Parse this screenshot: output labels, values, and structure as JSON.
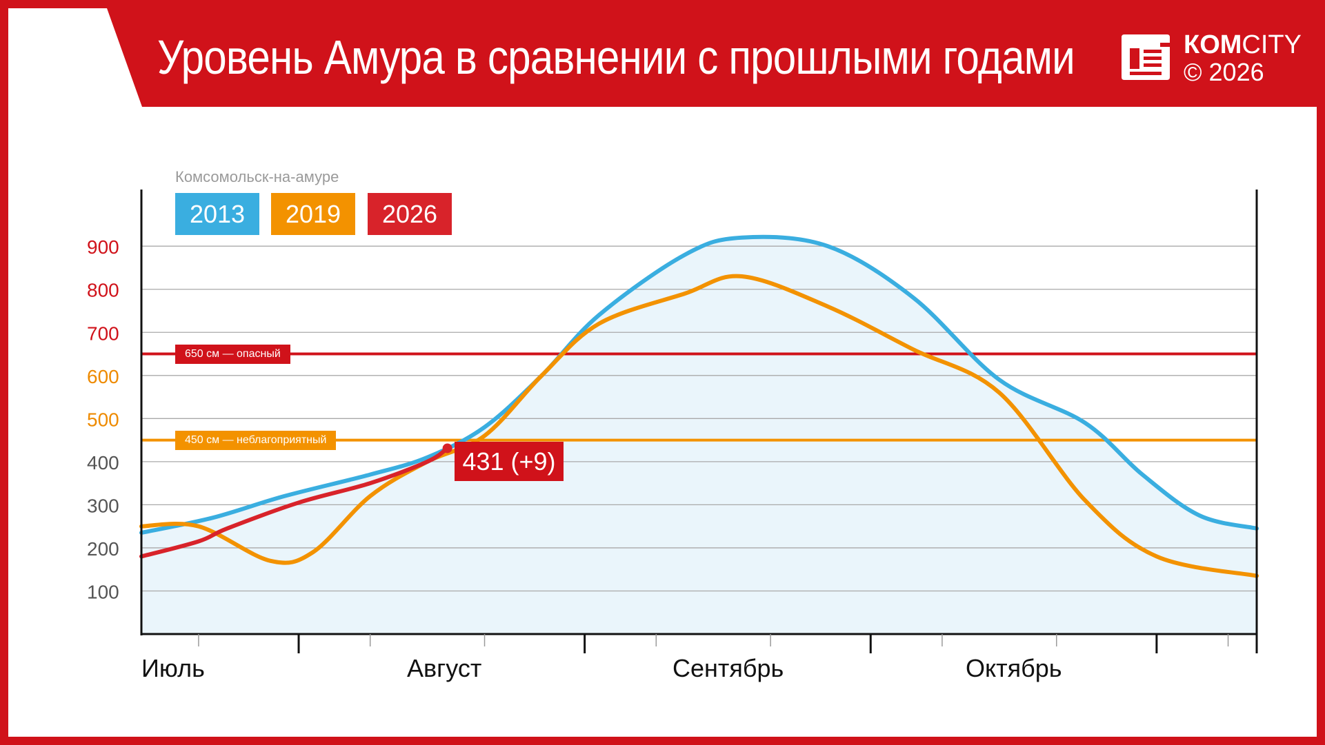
{
  "header": {
    "title": "Уровень Амура в сравнении с прошлыми годами",
    "logo_brand_bold": "КОМ",
    "logo_brand_rest": "CITY",
    "logo_copyright": "© 2026",
    "bg_color": "#d0121a"
  },
  "chart_data": {
    "type": "line",
    "subtitle": "Комсомольск-на-амуре",
    "ylim": [
      0,
      950
    ],
    "yticks": [
      {
        "v": 100,
        "label": "100",
        "color": "#555555"
      },
      {
        "v": 200,
        "label": "200",
        "color": "#555555"
      },
      {
        "v": 300,
        "label": "300",
        "color": "#555555"
      },
      {
        "v": 400,
        "label": "400",
        "color": "#555555"
      },
      {
        "v": 500,
        "label": "500",
        "color": "#ee8a00"
      },
      {
        "v": 600,
        "label": "600",
        "color": "#ee8a00"
      },
      {
        "v": 700,
        "label": "700",
        "color": "#d0121a"
      },
      {
        "v": 800,
        "label": "800",
        "color": "#d0121a"
      },
      {
        "v": 900,
        "label": "900",
        "color": "#d0121a"
      }
    ],
    "months": [
      "Июль",
      "Август",
      "Сентябрь",
      "Октябрь"
    ],
    "xlim": [
      0,
      3.9
    ],
    "minor_ticks": [
      0.2,
      0.8,
      1.2,
      1.8,
      2.2,
      2.8,
      3.2,
      3.8
    ],
    "major_ticks": [
      0.55,
      1.55,
      2.55,
      3.55
    ],
    "grid": true,
    "legend": [
      {
        "label": "2013",
        "color": "#3aaee0"
      },
      {
        "label": "2019",
        "color": "#f39200"
      },
      {
        "label": "2026",
        "color": "#d8232a"
      }
    ],
    "thresholds": [
      {
        "value": 650,
        "label": "650 см — опасный",
        "color": "#d0121a"
      },
      {
        "value": 450,
        "label": "450 см — неблагоприятный",
        "color": "#f39200"
      }
    ],
    "series": [
      {
        "name": "2013",
        "color": "#3aaee0",
        "fill": "#eaf5fb",
        "x": [
          0,
          0.25,
          0.5,
          0.8,
          1.0,
          1.2,
          1.4,
          1.6,
          1.9,
          2.1,
          2.4,
          2.7,
          3.0,
          3.3,
          3.5,
          3.7,
          3.9
        ],
        "y": [
          235,
          270,
          320,
          370,
          410,
          480,
          600,
          740,
          880,
          920,
          900,
          780,
          590,
          490,
          370,
          275,
          245
        ]
      },
      {
        "name": "2019",
        "color": "#f39200",
        "x": [
          0,
          0.2,
          0.45,
          0.6,
          0.8,
          1.0,
          1.2,
          1.4,
          1.6,
          1.9,
          2.1,
          2.4,
          2.7,
          3.0,
          3.3,
          3.55,
          3.9
        ],
        "y": [
          250,
          250,
          170,
          190,
          320,
          400,
          460,
          600,
          720,
          790,
          830,
          760,
          660,
          560,
          310,
          180,
          135
        ]
      },
      {
        "name": "2026",
        "color": "#d8232a",
        "x": [
          0,
          0.2,
          0.3,
          0.55,
          0.8,
          1.0,
          1.07
        ],
        "y": [
          180,
          215,
          245,
          305,
          350,
          400,
          431
        ]
      }
    ],
    "annotation": {
      "label": "431 (+9)",
      "x": 1.07,
      "y": 431
    }
  }
}
